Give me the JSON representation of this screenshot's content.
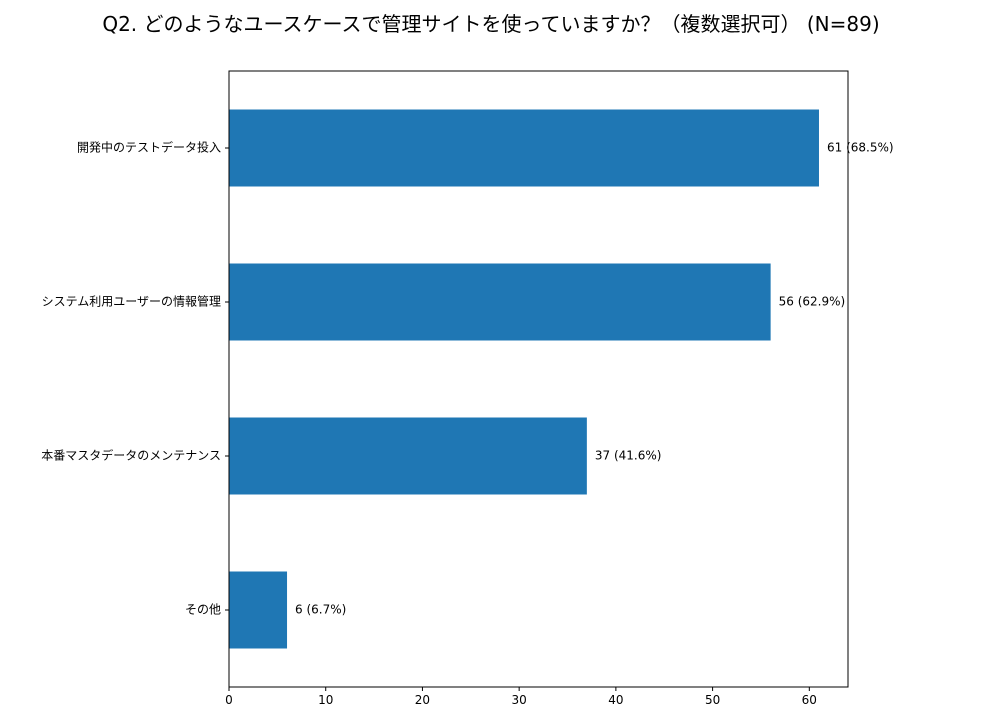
{
  "chart_data": {
    "type": "bar",
    "orientation": "horizontal",
    "title": "Q2. どのようなユースケースで管理サイトを使っていますか？（複数選択可） (N=89)",
    "categories": [
      "開発中のテストデータ投入",
      "システム利用ユーザーの情報管理",
      "本番マスタデータのメンテナンス",
      "その他"
    ],
    "values": [
      61,
      56,
      37,
      6
    ],
    "data_labels": [
      "61 (68.5%)",
      "56 (62.9%)",
      "37 (41.6%)",
      "6 (6.7%)"
    ],
    "xlabel": "",
    "ylabel": "",
    "xlim": [
      0,
      64
    ],
    "xticks": [
      0,
      10,
      20,
      30,
      40,
      50,
      60
    ],
    "grid": false,
    "bar_color": "#1f77b4"
  }
}
